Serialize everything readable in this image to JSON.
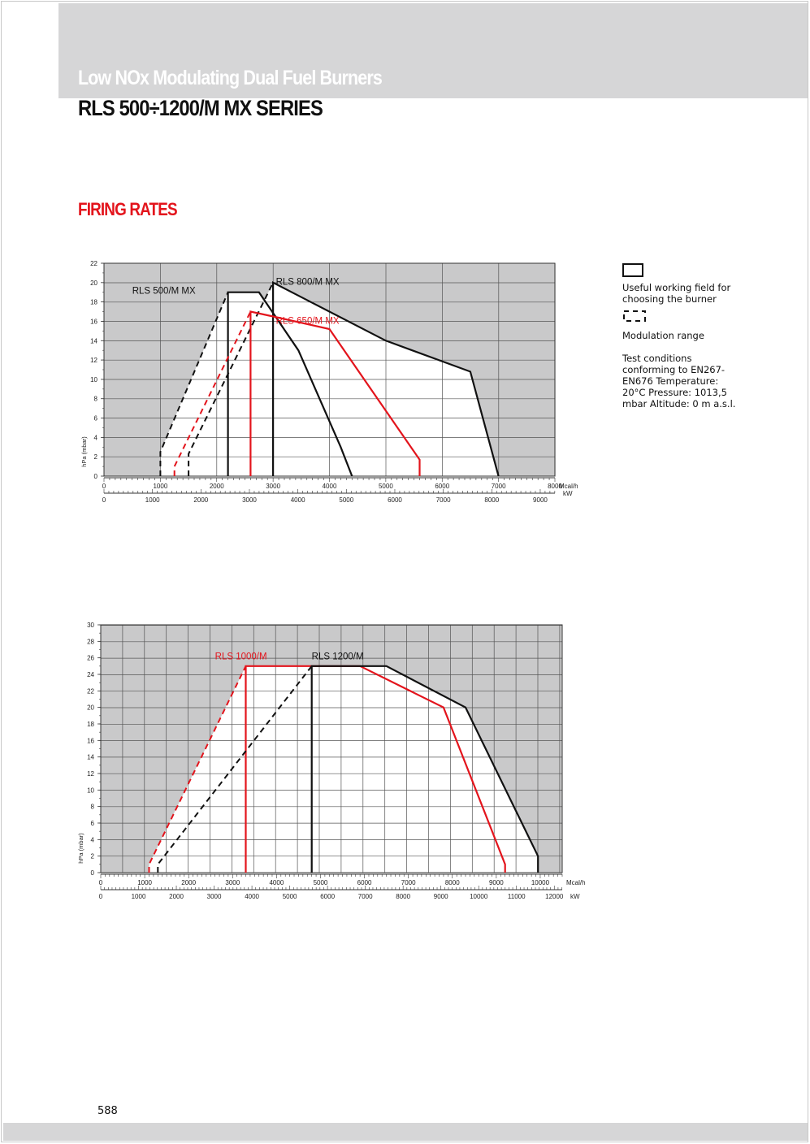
{
  "header": {
    "subtitle": "Low NOx Modulating Dual Fuel Burners",
    "series_title": "RLS 500÷1200/M MX SERIES"
  },
  "section_title": "FIRING RATES",
  "legend": {
    "working_field": "Useful working field for choosing the burner",
    "modulation": "Modulation range",
    "test_conditions": "Test conditions conforming to EN267- EN676 Temperature: 20°C Pressure: 1013,5 mbar Altitude: 0 m a.s.l."
  },
  "page_number": "588",
  "colors": {
    "header_band": "#d6d6d7",
    "accent_red": "#e3141c",
    "black": "#111111"
  },
  "chart_data": [
    {
      "type": "line",
      "title": "",
      "ylabel": "hPa (mbar)",
      "xlabel": "Mcal/h",
      "x2label": "kW",
      "xlim": [
        0,
        8000
      ],
      "ylim": [
        0,
        22
      ],
      "x2lim": [
        0,
        9302
      ],
      "x_ticks": [
        0,
        1000,
        2000,
        3000,
        4000,
        5000,
        6000,
        7000,
        8000
      ],
      "x2_ticks": [
        0,
        1000,
        2000,
        3000,
        4000,
        5000,
        6000,
        7000,
        8000,
        9000
      ],
      "y_ticks": [
        0,
        2,
        4,
        6,
        8,
        10,
        12,
        14,
        16,
        18,
        20,
        22
      ],
      "grid": true,
      "series": [
        {
          "name": "RLS 500/M MX",
          "color": "#111111",
          "style": "solid",
          "label_at": [
            500,
            19.2
          ],
          "points": [
            [
              2200,
              0
            ],
            [
              2200,
              19
            ],
            [
              2750,
              19
            ],
            [
              3450,
              13
            ],
            [
              4200,
              3
            ],
            [
              4400,
              0
            ]
          ]
        },
        {
          "name": "",
          "color": "#111111",
          "style": "dashed",
          "points": [
            [
              1000,
              0
            ],
            [
              1000,
              2.5
            ],
            [
              2200,
              19
            ]
          ]
        },
        {
          "name": "RLS 800/M MX",
          "color": "#111111",
          "style": "solid",
          "label_at": [
            3050,
            20.1
          ],
          "points": [
            [
              3000,
              0
            ],
            [
              3000,
              20
            ],
            [
              5000,
              14
            ],
            [
              6500,
              10.8
            ],
            [
              7000,
              0
            ]
          ]
        },
        {
          "name": "",
          "color": "#111111",
          "style": "dashed",
          "points": [
            [
              1500,
              0
            ],
            [
              1500,
              2.3
            ],
            [
              3000,
              20
            ]
          ]
        },
        {
          "name": "RLS 650/M MX",
          "color": "#e3141c",
          "style": "solid",
          "label_at": [
            3050,
            16.1
          ],
          "points": [
            [
              2600,
              0
            ],
            [
              2600,
              17
            ],
            [
              3000,
              16.5
            ],
            [
              4000,
              15.2
            ],
            [
              5600,
              1.7
            ],
            [
              5600,
              0
            ]
          ]
        },
        {
          "name": "",
          "color": "#e3141c",
          "style": "dashed",
          "points": [
            [
              1250,
              0
            ],
            [
              1250,
              1
            ],
            [
              2600,
              17
            ]
          ]
        }
      ]
    },
    {
      "type": "line",
      "title": "",
      "ylabel": "hPa (mbar)",
      "xlabel": "Mcal/h",
      "x2label": "kW",
      "xlim": [
        0,
        10500
      ],
      "ylim": [
        0,
        30
      ],
      "x2lim": [
        0,
        12209
      ],
      "x_ticks": [
        0,
        1000,
        2000,
        3000,
        4000,
        5000,
        6000,
        7000,
        8000,
        9000,
        10000
      ],
      "x2_ticks": [
        0,
        1000,
        2000,
        3000,
        4000,
        5000,
        6000,
        7000,
        8000,
        9000,
        10000,
        11000,
        12000
      ],
      "y_ticks": [
        0,
        2,
        4,
        6,
        8,
        10,
        12,
        14,
        16,
        18,
        20,
        22,
        24,
        26,
        28,
        30
      ],
      "grid": true,
      "series": [
        {
          "name": "RLS 1000/M",
          "color": "#e3141c",
          "style": "solid",
          "label_at": [
            2600,
            26.2
          ],
          "points": [
            [
              3300,
              0
            ],
            [
              3300,
              25
            ],
            [
              5900,
              25
            ],
            [
              7800,
              20
            ],
            [
              9200,
              1
            ],
            [
              9200,
              0
            ]
          ]
        },
        {
          "name": "",
          "color": "#e3141c",
          "style": "dashed",
          "points": [
            [
              1100,
              0
            ],
            [
              1100,
              1
            ],
            [
              3300,
              25
            ]
          ]
        },
        {
          "name": "RLS 1200/M",
          "color": "#111111",
          "style": "solid",
          "label_at": [
            4800,
            26.2
          ],
          "points": [
            [
              4800,
              0
            ],
            [
              4800,
              25
            ],
            [
              6500,
              25
            ],
            [
              8300,
              20
            ],
            [
              9950,
              2
            ],
            [
              9950,
              0
            ]
          ]
        },
        {
          "name": "",
          "color": "#111111",
          "style": "dashed",
          "points": [
            [
              1300,
              0
            ],
            [
              1300,
              1
            ],
            [
              4800,
              25
            ]
          ]
        }
      ]
    }
  ]
}
